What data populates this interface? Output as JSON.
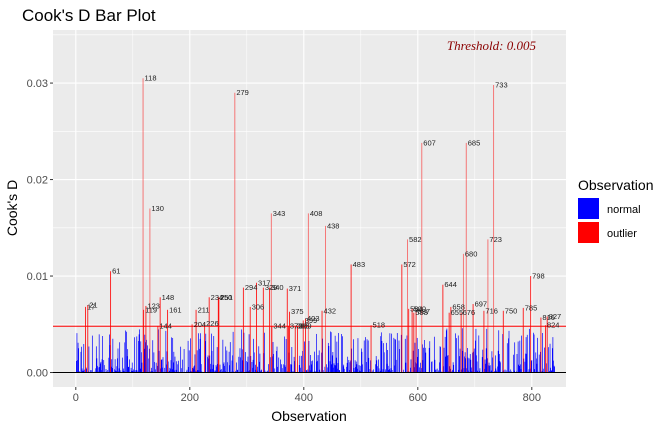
{
  "chart_data": {
    "type": "bar",
    "title": "Cook's D Bar Plot",
    "xlabel": "Observation",
    "ylabel": "Cook's D",
    "xlim": [
      -40,
      860
    ],
    "ylim": [
      -0.0015,
      0.0355
    ],
    "x_ticks": [
      0,
      200,
      400,
      600,
      800
    ],
    "y_ticks": [
      0,
      0.01,
      0.02,
      0.03
    ],
    "y_tick_labels": [
      "0.00",
      "0.01",
      "0.02",
      "0.03"
    ],
    "grid": true,
    "threshold": 0.0048,
    "annotation": "Threshold: 0.005",
    "legend": {
      "title": "Observation",
      "position": "right",
      "entries": [
        {
          "label": "normal",
          "color": "#0000ff"
        },
        {
          "label": "outlier",
          "color": "#ff0000"
        }
      ]
    },
    "outliers": [
      {
        "x": 17,
        "y": 0.0068,
        "label": "17"
      },
      {
        "x": 21,
        "y": 0.007,
        "label": "21"
      },
      {
        "x": 61,
        "y": 0.0105,
        "label": "61"
      },
      {
        "x": 118,
        "y": 0.0305,
        "label": "118"
      },
      {
        "x": 119,
        "y": 0.0065,
        "label": "119"
      },
      {
        "x": 123,
        "y": 0.0069,
        "label": "123"
      },
      {
        "x": 130,
        "y": 0.017,
        "label": "130"
      },
      {
        "x": 144,
        "y": 0.0048,
        "label": "144"
      },
      {
        "x": 148,
        "y": 0.0078,
        "label": "148"
      },
      {
        "x": 161,
        "y": 0.0065,
        "label": "161"
      },
      {
        "x": 204,
        "y": 0.005,
        "label": "204"
      },
      {
        "x": 211,
        "y": 0.0065,
        "label": "211"
      },
      {
        "x": 226,
        "y": 0.0051,
        "label": "226"
      },
      {
        "x": 234,
        "y": 0.0078,
        "label": "234"
      },
      {
        "x": 250,
        "y": 0.0078,
        "label": "250"
      },
      {
        "x": 251,
        "y": 0.0078,
        "label": "251"
      },
      {
        "x": 279,
        "y": 0.029,
        "label": "279"
      },
      {
        "x": 294,
        "y": 0.0088,
        "label": "294"
      },
      {
        "x": 306,
        "y": 0.0068,
        "label": "306"
      },
      {
        "x": 317,
        "y": 0.0093,
        "label": "317"
      },
      {
        "x": 329,
        "y": 0.0088,
        "label": "329"
      },
      {
        "x": 340,
        "y": 0.0088,
        "label": "340"
      },
      {
        "x": 343,
        "y": 0.0165,
        "label": "343"
      },
      {
        "x": 344,
        "y": 0.0048,
        "label": "344"
      },
      {
        "x": 371,
        "y": 0.0087,
        "label": "371"
      },
      {
        "x": 373,
        "y": 0.0048,
        "label": "373"
      },
      {
        "x": 375,
        "y": 0.0063,
        "label": "375"
      },
      {
        "x": 385,
        "y": 0.0048,
        "label": "385"
      },
      {
        "x": 389,
        "y": 0.0048,
        "label": "389"
      },
      {
        "x": 399,
        "y": 0.0054,
        "label": "399"
      },
      {
        "x": 403,
        "y": 0.0056,
        "label": "403"
      },
      {
        "x": 408,
        "y": 0.0165,
        "label": "408"
      },
      {
        "x": 432,
        "y": 0.0064,
        "label": "432"
      },
      {
        "x": 438,
        "y": 0.0152,
        "label": "438"
      },
      {
        "x": 483,
        "y": 0.0112,
        "label": "483"
      },
      {
        "x": 518,
        "y": 0.0049,
        "label": "518"
      },
      {
        "x": 572,
        "y": 0.0112,
        "label": "572"
      },
      {
        "x": 582,
        "y": 0.0138,
        "label": "582"
      },
      {
        "x": 584,
        "y": 0.0066,
        "label": "584"
      },
      {
        "x": 590,
        "y": 0.0066,
        "label": "590"
      },
      {
        "x": 593,
        "y": 0.0062,
        "label": "593"
      },
      {
        "x": 597,
        "y": 0.0063,
        "label": "597"
      },
      {
        "x": 607,
        "y": 0.0238,
        "label": "607"
      },
      {
        "x": 644,
        "y": 0.0091,
        "label": "644"
      },
      {
        "x": 655,
        "y": 0.0062,
        "label": "655"
      },
      {
        "x": 658,
        "y": 0.0068,
        "label": "658"
      },
      {
        "x": 676,
        "y": 0.0062,
        "label": "676"
      },
      {
        "x": 680,
        "y": 0.0123,
        "label": "680"
      },
      {
        "x": 685,
        "y": 0.0238,
        "label": "685"
      },
      {
        "x": 697,
        "y": 0.0071,
        "label": "697"
      },
      {
        "x": 716,
        "y": 0.0064,
        "label": "716"
      },
      {
        "x": 723,
        "y": 0.0138,
        "label": "723"
      },
      {
        "x": 733,
        "y": 0.0298,
        "label": "733"
      },
      {
        "x": 750,
        "y": 0.0064,
        "label": "750"
      },
      {
        "x": 785,
        "y": 0.0067,
        "label": "785"
      },
      {
        "x": 798,
        "y": 0.01,
        "label": "798"
      },
      {
        "x": 816,
        "y": 0.0057,
        "label": "816"
      },
      {
        "x": 824,
        "y": 0.0049,
        "label": "824"
      },
      {
        "x": 827,
        "y": 0.0058,
        "label": "827"
      }
    ],
    "normal_series": {
      "n": 840,
      "max": 0.0046
    }
  }
}
